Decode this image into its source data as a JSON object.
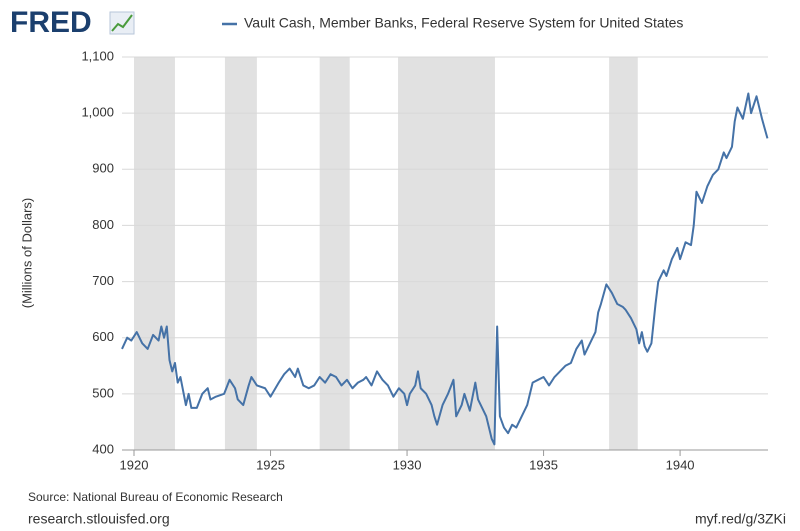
{
  "logo": "FRED",
  "chart_data": {
    "type": "line",
    "series": [
      {
        "name": "Vault Cash, Member Banks, Federal Reserve System for United States",
        "color": "#4572a7",
        "x": [
          1919.56,
          1919.75,
          1919.9,
          1920.1,
          1920.3,
          1920.5,
          1920.7,
          1920.9,
          1921.0,
          1921.1,
          1921.2,
          1921.3,
          1921.4,
          1921.5,
          1921.6,
          1921.7,
          1921.9,
          1922.0,
          1922.1,
          1922.3,
          1922.5,
          1922.7,
          1922.8,
          1923.0,
          1923.3,
          1923.5,
          1923.7,
          1923.8,
          1924.0,
          1924.2,
          1924.3,
          1924.5,
          1924.8,
          1925.0,
          1925.3,
          1925.5,
          1925.7,
          1925.9,
          1926.0,
          1926.2,
          1926.4,
          1926.6,
          1926.8,
          1927.0,
          1927.2,
          1927.4,
          1927.6,
          1927.8,
          1928.0,
          1928.2,
          1928.4,
          1928.5,
          1928.7,
          1928.9,
          1929.1,
          1929.3,
          1929.5,
          1929.7,
          1929.9,
          1930.0,
          1930.1,
          1930.3,
          1930.4,
          1930.5,
          1930.7,
          1930.9,
          1931.0,
          1931.1,
          1931.3,
          1931.5,
          1931.7,
          1931.8,
          1932.0,
          1932.1,
          1932.3,
          1932.5,
          1932.6,
          1932.8,
          1932.9,
          1933.0,
          1933.1,
          1933.2,
          1933.3,
          1933.4,
          1933.55,
          1933.7,
          1933.85,
          1934.0,
          1934.2,
          1934.4,
          1934.6,
          1934.8,
          1935.0,
          1935.2,
          1935.4,
          1935.6,
          1935.8,
          1936.0,
          1936.2,
          1936.4,
          1936.5,
          1936.7,
          1936.9,
          1937.0,
          1937.1,
          1937.3,
          1937.5,
          1937.7,
          1937.9,
          1938.0,
          1938.2,
          1938.4,
          1938.5,
          1938.6,
          1938.7,
          1938.8,
          1938.95,
          1939.1,
          1939.2,
          1939.4,
          1939.5,
          1939.7,
          1939.9,
          1940.0,
          1940.2,
          1940.4,
          1940.5,
          1940.6,
          1940.8,
          1941.0,
          1941.2,
          1941.4,
          1941.6,
          1941.7,
          1941.9,
          1942.0,
          1942.1,
          1942.3,
          1942.5,
          1942.6,
          1942.8,
          1943.0,
          1943.2
        ],
        "values": [
          580,
          600,
          595,
          610,
          590,
          580,
          605,
          595,
          620,
          600,
          620,
          560,
          540,
          555,
          520,
          530,
          480,
          500,
          475,
          475,
          500,
          510,
          490,
          495,
          500,
          525,
          510,
          490,
          480,
          515,
          530,
          515,
          510,
          495,
          520,
          535,
          545,
          530,
          545,
          515,
          510,
          515,
          530,
          520,
          535,
          530,
          515,
          525,
          510,
          520,
          525,
          530,
          515,
          540,
          525,
          515,
          495,
          510,
          500,
          480,
          500,
          515,
          540,
          510,
          500,
          480,
          460,
          445,
          480,
          500,
          525,
          460,
          480,
          500,
          470,
          520,
          490,
          470,
          460,
          440,
          420,
          410,
          620,
          460,
          440,
          430,
          445,
          440,
          460,
          480,
          520,
          525,
          530,
          515,
          530,
          540,
          550,
          555,
          580,
          595,
          570,
          590,
          610,
          645,
          660,
          695,
          680,
          660,
          655,
          650,
          635,
          615,
          590,
          610,
          585,
          575,
          590,
          660,
          700,
          720,
          710,
          740,
          760,
          740,
          770,
          765,
          800,
          860,
          840,
          870,
          890,
          900,
          930,
          920,
          940,
          985,
          1010,
          990,
          1035,
          1000,
          1030,
          990,
          955
        ]
      }
    ],
    "y_axis_label": "(Millions of Dollars)",
    "xlim": [
      1919.56,
      1943.22
    ],
    "ylim": [
      400,
      1100
    ],
    "xticks": [
      1920,
      1925,
      1930,
      1935,
      1940
    ],
    "yticks": [
      400,
      500,
      600,
      700,
      800,
      900,
      {
        "value": 1000,
        "label": "1,000"
      },
      {
        "value": 1100,
        "label": "1,100"
      }
    ],
    "recessions": [
      [
        1920.0,
        1921.5
      ],
      [
        1923.33,
        1924.5
      ],
      [
        1926.8,
        1927.9
      ],
      [
        1929.67,
        1933.22
      ],
      [
        1937.4,
        1938.45
      ]
    ],
    "grid": true
  },
  "footer": {
    "source": "Source: National Bureau of Economic Research",
    "site": "research.stlouisfed.org",
    "short_url": "myf.red/g/3ZKi"
  }
}
